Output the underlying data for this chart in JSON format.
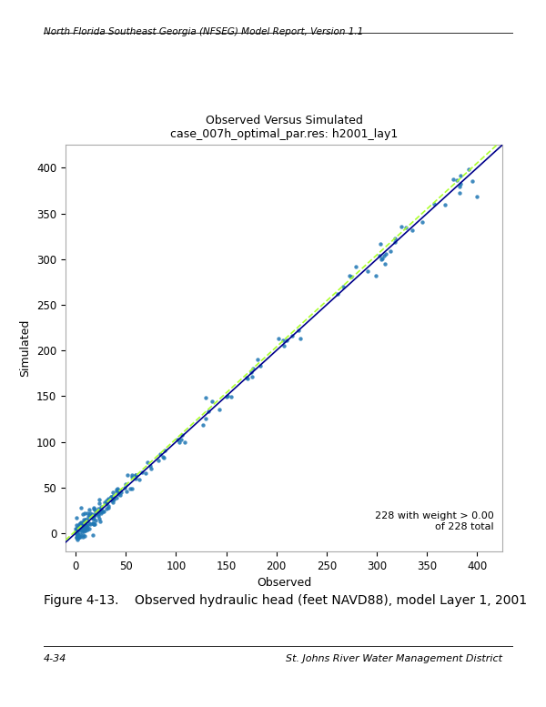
{
  "title_line1": "Observed Versus Simulated",
  "title_line2": "case_007h_optimal_par.res: h2001_lay1",
  "xlabel": "Observed",
  "ylabel": "Simulated",
  "xlim": [
    -10,
    425
  ],
  "ylim": [
    -20,
    425
  ],
  "xticks": [
    0,
    50,
    100,
    150,
    200,
    250,
    300,
    350,
    400
  ],
  "yticks": [
    0,
    50,
    100,
    150,
    200,
    250,
    300,
    350,
    400
  ],
  "scatter_color": "#1f77b4",
  "scatter_size": 10,
  "one_to_one_color": "#00008B",
  "regression_color": "#ADFF2F",
  "annotation": "228 with weight > 0.00\nof 228 total",
  "header_text": "North Florida Southeast Georgia (NFSEG) Model Report, Version 1.1",
  "figure_caption": "Figure 4-13.    Observed hydraulic head (feet NAVD88), model Layer 1, 2001",
  "footer_left": "4-34",
  "footer_right": "St. Johns River Water Management District"
}
